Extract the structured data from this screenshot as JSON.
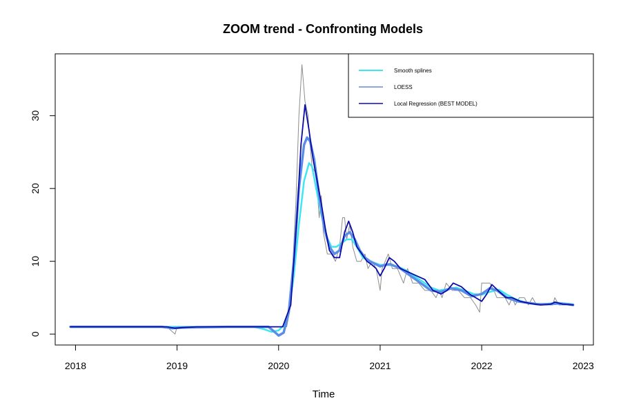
{
  "chart_data": {
    "type": "line",
    "title": "ZOOM trend - Confronting Models",
    "xlabel": "Time",
    "ylabel": "",
    "xlim": [
      2017.8,
      2023.1
    ],
    "ylim": [
      -1.5,
      38.5
    ],
    "x_ticks": [
      2018,
      2019,
      2020,
      2021,
      2022,
      2023
    ],
    "y_ticks": [
      0,
      10,
      20,
      30
    ],
    "legend_position": "top-right",
    "grid": false,
    "colors": {
      "raw": "#8c8c8c",
      "smooth_splines": "#3ee6f2",
      "loess": "#5b8de6",
      "local_regression": "#0a0aa8"
    },
    "legend": [
      {
        "label": "Smooth splines",
        "color": "#3ee6f2"
      },
      {
        "label": "LOESS",
        "color": "#8aa7e0"
      },
      {
        "label": "Local Regression (BEST MODEL)",
        "color": "#4a46c8"
      }
    ],
    "series": [
      {
        "key": "raw",
        "x": [
          2017.95,
          2018.4,
          2018.9,
          2018.98,
          2019.0,
          2019.04,
          2019.1,
          2019.5,
          2019.9,
          2019.96,
          2020.0,
          2020.04,
          2020.08,
          2020.12,
          2020.17,
          2020.2,
          2020.23,
          2020.26,
          2020.29,
          2020.31,
          2020.33,
          2020.37,
          2020.4,
          2020.42,
          2020.44,
          2020.48,
          2020.52,
          2020.56,
          2020.6,
          2020.63,
          2020.65,
          2020.67,
          2020.7,
          2020.73,
          2020.77,
          2020.81,
          2020.85,
          2020.88,
          2020.92,
          2020.96,
          2021.0,
          2021.02,
          2021.05,
          2021.08,
          2021.12,
          2021.17,
          2021.2,
          2021.23,
          2021.27,
          2021.32,
          2021.38,
          2021.44,
          2021.5,
          2021.55,
          2021.58,
          2021.61,
          2021.65,
          2021.71,
          2021.77,
          2021.83,
          2021.89,
          2021.94,
          2021.98,
          2022.0,
          2022.04,
          2022.08,
          2022.12,
          2022.15,
          2022.19,
          2022.23,
          2022.27,
          2022.3,
          2022.33,
          2022.37,
          2022.42,
          2022.46,
          2022.5,
          2022.54,
          2022.6,
          2022.66,
          2022.7,
          2022.72,
          2022.76,
          2022.82,
          2022.9
        ],
        "y": [
          1,
          1,
          1,
          0,
          1,
          1,
          1,
          1,
          1,
          1,
          1,
          1,
          1,
          4,
          18,
          30,
          37,
          32,
          30,
          26,
          23,
          22,
          16,
          19,
          14,
          11,
          11,
          10,
          12,
          16,
          16,
          13,
          15,
          12,
          10,
          10,
          11,
          9,
          10,
          9,
          6,
          9,
          10,
          11,
          9,
          9,
          8,
          7,
          9,
          7,
          7,
          6,
          6,
          5,
          6,
          5,
          7,
          6,
          6,
          5,
          5,
          4,
          3,
          7,
          7,
          7,
          6,
          5,
          5,
          5,
          4,
          5,
          4,
          5,
          5,
          4,
          5,
          4,
          4,
          4,
          4,
          5,
          4,
          4,
          4
        ]
      },
      {
        "key": "smooth_splines",
        "x": [
          2017.95,
          2018.5,
          2019.0,
          2019.5,
          2019.75,
          2019.85,
          2019.93,
          2020.0,
          2020.05,
          2020.1,
          2020.15,
          2020.2,
          2020.25,
          2020.3,
          2020.33,
          2020.37,
          2020.42,
          2020.47,
          2020.52,
          2020.57,
          2020.62,
          2020.67,
          2020.72,
          2020.77,
          2020.83,
          2020.9,
          2021.0,
          2021.08,
          2021.17,
          2021.25,
          2021.33,
          2021.42,
          2021.5,
          2021.58,
          2021.67,
          2021.75,
          2021.83,
          2021.92,
          2022.0,
          2022.08,
          2022.17,
          2022.25,
          2022.33,
          2022.42,
          2022.5,
          2022.58,
          2022.67,
          2022.75,
          2022.83,
          2022.9
        ],
        "y": [
          1,
          1,
          1,
          1,
          1,
          0.7,
          0.3,
          0.5,
          1.2,
          3,
          8,
          15,
          21,
          23.5,
          23,
          20,
          16.5,
          13.5,
          12,
          12,
          12.5,
          13,
          13,
          12,
          10.5,
          10,
          9.5,
          9.5,
          9.3,
          8.8,
          8,
          7.2,
          6.4,
          6,
          6.2,
          6.4,
          6,
          5.5,
          5.4,
          5.8,
          6.1,
          5.4,
          4.8,
          4.4,
          4.2,
          4.1,
          4.2,
          4.3,
          4.2,
          4.1
        ]
      },
      {
        "key": "loess",
        "x": [
          2017.95,
          2018.5,
          2018.85,
          2018.95,
          2019.05,
          2019.5,
          2019.9,
          2019.96,
          2020.0,
          2020.05,
          2020.1,
          2020.15,
          2020.2,
          2020.25,
          2020.28,
          2020.31,
          2020.35,
          2020.4,
          2020.45,
          2020.5,
          2020.55,
          2020.6,
          2020.65,
          2020.7,
          2020.75,
          2020.8,
          2020.85,
          2020.9,
          2021.0,
          2021.05,
          2021.1,
          2021.2,
          2021.3,
          2021.4,
          2021.5,
          2021.6,
          2021.7,
          2021.8,
          2021.9,
          2022.0,
          2022.08,
          2022.15,
          2022.25,
          2022.35,
          2022.45,
          2022.55,
          2022.65,
          2022.75,
          2022.85,
          2022.9
        ],
        "y": [
          1,
          1,
          1,
          0.8,
          0.9,
          1,
          1,
          0.3,
          -0.2,
          0.2,
          3,
          10,
          20,
          26,
          27,
          26.5,
          24,
          19,
          14.5,
          12,
          11,
          11.5,
          13.5,
          14,
          13,
          11.5,
          10.5,
          10,
          9.3,
          9.5,
          9.6,
          9,
          8,
          7,
          6,
          5.8,
          6.3,
          6,
          5.2,
          5.5,
          6.3,
          6,
          5,
          4.5,
          4.3,
          4.1,
          4.1,
          4.2,
          4.1,
          4
        ]
      },
      {
        "key": "local_regression",
        "x": [
          2017.95,
          2018.9,
          2018.98,
          2019.06,
          2019.2,
          2019.5,
          2019.9,
          2020.0,
          2020.04,
          2020.08,
          2020.12,
          2020.18,
          2020.22,
          2020.26,
          2020.3,
          2020.34,
          2020.38,
          2020.42,
          2020.46,
          2020.5,
          2020.55,
          2020.6,
          2020.65,
          2020.69,
          2020.73,
          2020.77,
          2020.82,
          2020.87,
          2020.92,
          2020.96,
          2021.0,
          2021.04,
          2021.09,
          2021.14,
          2021.2,
          2021.28,
          2021.36,
          2021.44,
          2021.52,
          2021.6,
          2021.66,
          2021.72,
          2021.8,
          2021.88,
          2021.94,
          2022.0,
          2022.05,
          2022.1,
          2022.16,
          2022.24,
          2022.3,
          2022.38,
          2022.48,
          2022.58,
          2022.68,
          2022.72,
          2022.8,
          2022.9
        ],
        "y": [
          1,
          1,
          0.8,
          0.9,
          1,
          1,
          1,
          1,
          1,
          2.5,
          4,
          16,
          26,
          31.5,
          28,
          24,
          21,
          18,
          14.5,
          11.5,
          10.5,
          10.5,
          14,
          15.5,
          14,
          12,
          11,
          10,
          9.5,
          9,
          8,
          9,
          10.5,
          10,
          9,
          8.5,
          8,
          7.5,
          6,
          5.5,
          6,
          7,
          6.5,
          5.5,
          5,
          4.5,
          5.5,
          6.8,
          6,
          5,
          5,
          4.5,
          4.2,
          4,
          4.1,
          4.4,
          4.1,
          4
        ]
      }
    ]
  }
}
